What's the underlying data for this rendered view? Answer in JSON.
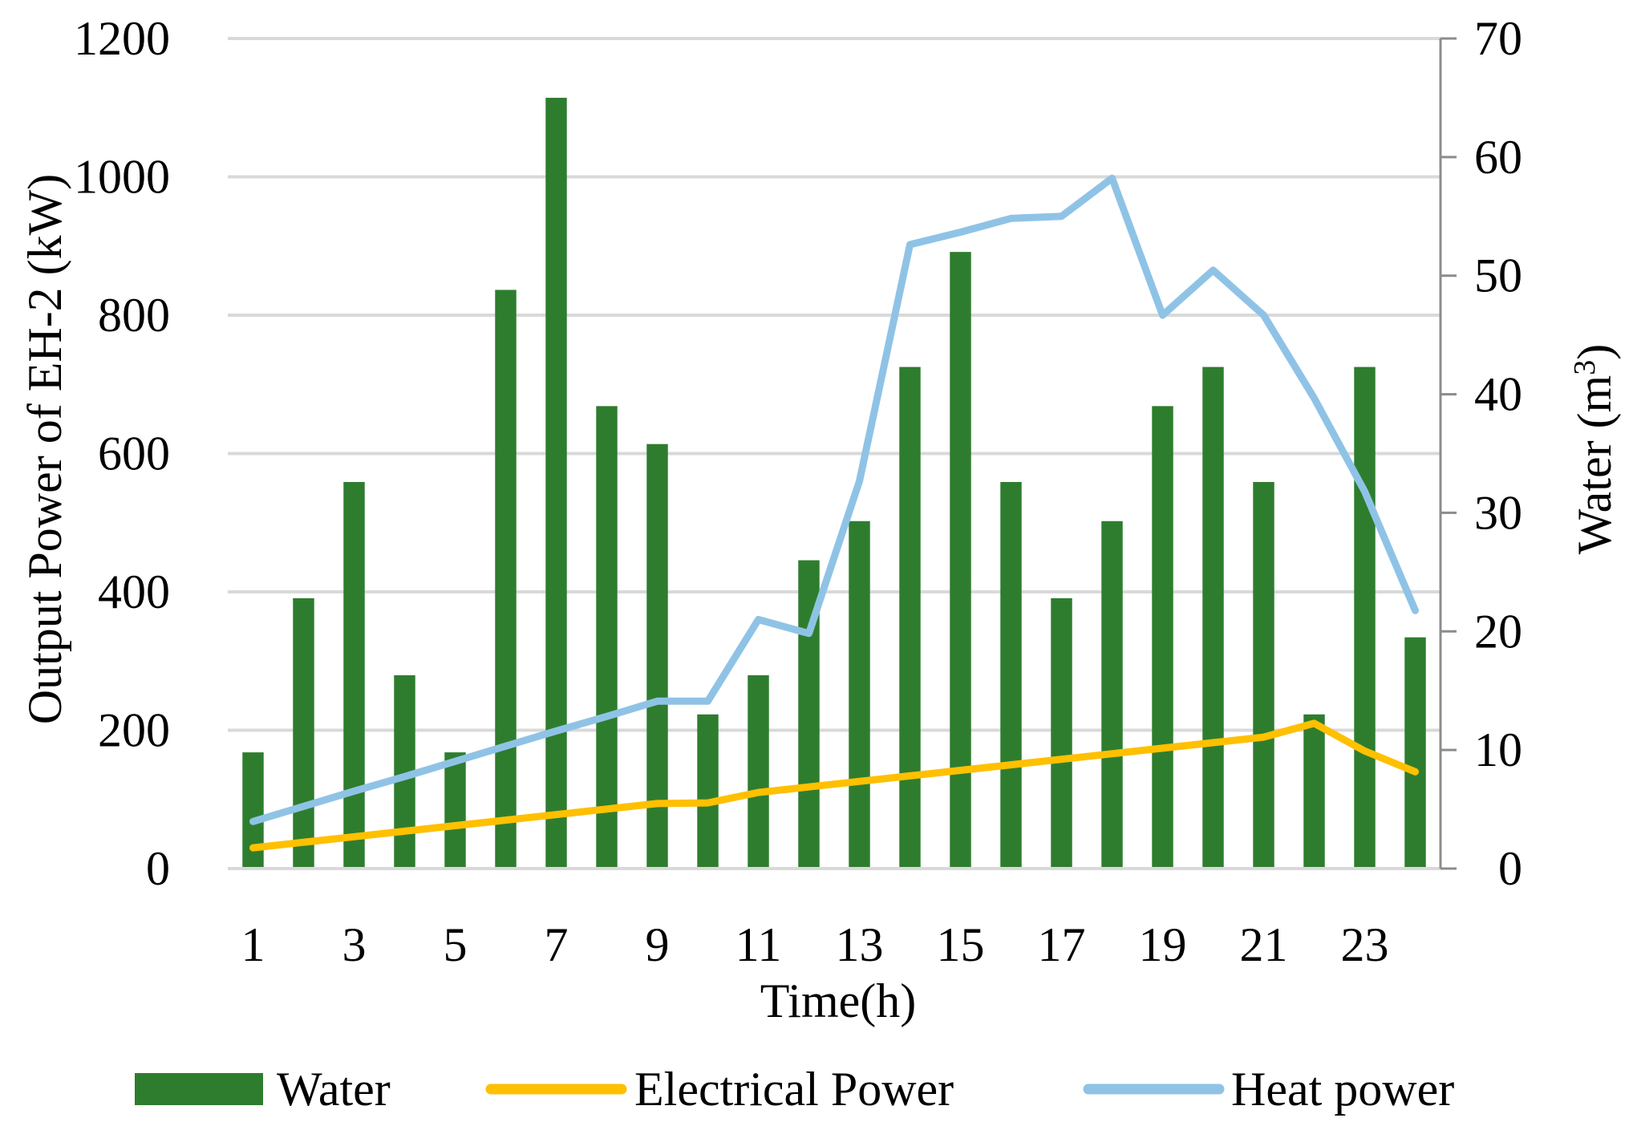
{
  "chart_data": {
    "type": "bar+line",
    "title": "",
    "xlabel": "Time(h)",
    "ylabel": "Output Power of EH-2 (kW)",
    "y2label_main": "Water (m",
    "y2label_sup": "3",
    "y2label_end": ")",
    "x": [
      1,
      2,
      3,
      4,
      5,
      6,
      7,
      8,
      9,
      10,
      11,
      12,
      13,
      14,
      15,
      16,
      17,
      18,
      19,
      20,
      21,
      22,
      23,
      24
    ],
    "x_tick_labels": [
      "1",
      "3",
      "5",
      "7",
      "9",
      "11",
      "13",
      "15",
      "17",
      "19",
      "21",
      "23"
    ],
    "x_tick_values": [
      1,
      3,
      5,
      7,
      9,
      11,
      13,
      15,
      17,
      19,
      21,
      23
    ],
    "ylim": [
      0,
      1200
    ],
    "y_ticks": [
      0,
      200,
      400,
      600,
      800,
      1000,
      1200
    ],
    "y2lim": [
      0,
      70
    ],
    "y2_ticks": [
      0,
      10,
      20,
      30,
      40,
      50,
      60,
      70
    ],
    "grid": true,
    "legend_position": "bottom",
    "series": [
      {
        "name": "Water",
        "kind": "bar",
        "axis": "right",
        "color": "#2e7d2e",
        "values": [
          9.8,
          22.8,
          32.6,
          16.3,
          9.8,
          48.8,
          65.0,
          39.0,
          35.8,
          13.0,
          16.3,
          26.0,
          29.3,
          42.3,
          52.0,
          32.6,
          22.8,
          29.3,
          39.0,
          42.3,
          32.6,
          13.0,
          42.3,
          19.5
        ]
      },
      {
        "name": "Electrical Power",
        "kind": "line",
        "axis": "left",
        "color": "#ffc000",
        "values": [
          30,
          38,
          46,
          54,
          62,
          70,
          78,
          86,
          94,
          95,
          110,
          118,
          126,
          134,
          142,
          150,
          158,
          166,
          174,
          182,
          190,
          210,
          170,
          140
        ]
      },
      {
        "name": "Heat power",
        "kind": "line",
        "axis": "left",
        "color": "#8fc3e6",
        "values": [
          68,
          90,
          112,
          133,
          155,
          177,
          199,
          220,
          242,
          242,
          360,
          340,
          560,
          902,
          920,
          940,
          943,
          998,
          800,
          865,
          800,
          680,
          545,
          373
        ]
      }
    ]
  }
}
